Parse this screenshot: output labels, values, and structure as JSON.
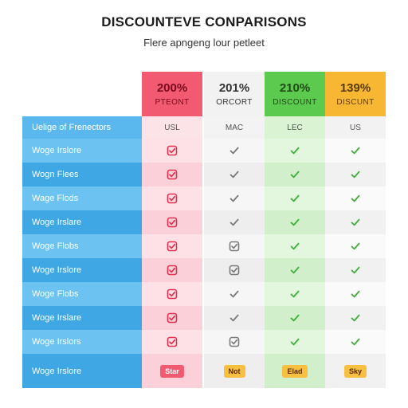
{
  "title": "DISCOUNTEVE CONPARISONS",
  "subtitle": "Flere apngeng lour petleet",
  "columns": [
    {
      "pct": "200%",
      "label": "PTEONT",
      "sub": "USL",
      "pill": "Star",
      "accent": "#f25a72",
      "tint": "#fde1e6"
    },
    {
      "pct": "201%",
      "label": "ORCORT",
      "sub": "MAC",
      "pill": "Not",
      "accent": "#f2f2f2",
      "tint": "#f6f6f6"
    },
    {
      "pct": "210%",
      "label": "DISCOUNT",
      "sub": "LEC",
      "pill": "Elad",
      "accent": "#5cc94f",
      "tint": "#def5d9"
    },
    {
      "pct": "139%",
      "label": "DISCUNT",
      "sub": "US",
      "pill": "Sky",
      "accent": "#f7b733",
      "tint": "#fafafa"
    }
  ],
  "header_left": "Uelige of Frenectors",
  "rows": [
    {
      "label": "Woge Irslore",
      "marks": [
        "box-check",
        "check",
        "check",
        "check"
      ]
    },
    {
      "label": "Wogn Flees",
      "marks": [
        "box-check",
        "check",
        "check",
        "check"
      ]
    },
    {
      "label": "Wage Flods",
      "marks": [
        "box-check",
        "check",
        "check",
        "check"
      ]
    },
    {
      "label": "Woge Irslare",
      "marks": [
        "box-check",
        "check",
        "check",
        "check"
      ]
    },
    {
      "label": "Woge Flobs",
      "marks": [
        "box-check",
        "box-check",
        "check",
        "check"
      ]
    },
    {
      "label": "Woge Irslore",
      "marks": [
        "box-check",
        "box-check",
        "check",
        "check"
      ]
    },
    {
      "label": "Woge Flobs",
      "marks": [
        "box-check",
        "check",
        "check",
        "check"
      ]
    },
    {
      "label": "Woge Irslare",
      "marks": [
        "box-check",
        "check",
        "check",
        "check"
      ]
    },
    {
      "label": "Woge Irslors",
      "marks": [
        "box-check",
        "box-check",
        "check",
        "check"
      ]
    },
    {
      "label": "Woge Irslore"
    }
  ]
}
